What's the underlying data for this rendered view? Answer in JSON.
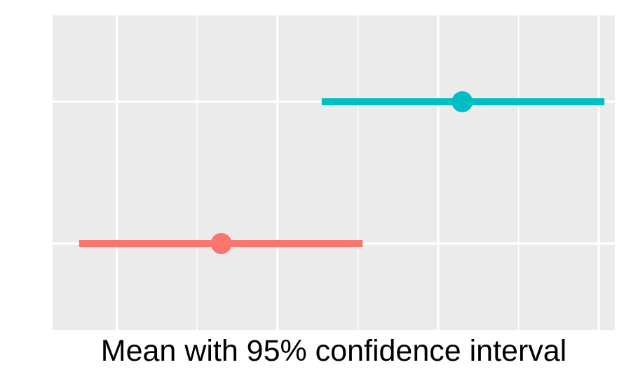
{
  "chart_data": {
    "type": "errorbar",
    "title": "",
    "xlabel": "Mean with 95% confidence interval",
    "ylabel": "",
    "xlim": [
      0,
      7
    ],
    "x_major_ticks": [
      0.8,
      2.8,
      4.8,
      6.8
    ],
    "x_minor_ticks": [
      1.8,
      3.8,
      5.8
    ],
    "grid": true,
    "legend": "none",
    "series": [
      {
        "mean": 2.1,
        "lower": 0.33,
        "upper": 3.86,
        "color": "#F8766D"
      },
      {
        "mean": 5.1,
        "lower": 3.35,
        "upper": 6.87,
        "color": "#00BFC4"
      }
    ]
  }
}
